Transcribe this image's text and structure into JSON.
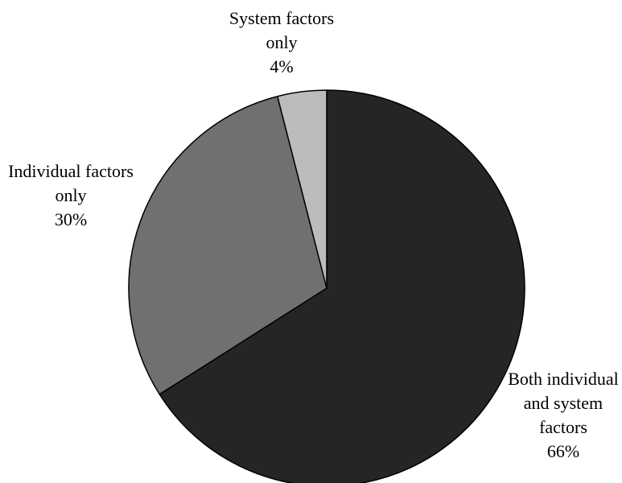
{
  "chart_data": {
    "type": "pie",
    "start_angle_deg": 0,
    "direction": "clockwise",
    "slices": [
      {
        "label_lines": [
          "Both individual",
          "and system",
          "factors"
        ],
        "value": 66,
        "value_label": "66%",
        "color": "#252525"
      },
      {
        "label_lines": [
          "Individual factors",
          "only"
        ],
        "value": 30,
        "value_label": "30%",
        "color": "#707070"
      },
      {
        "label_lines": [
          "System factors",
          "only"
        ],
        "value": 4,
        "value_label": "4%",
        "color": "#bcbcbc"
      }
    ],
    "stroke_color": "#000000"
  }
}
